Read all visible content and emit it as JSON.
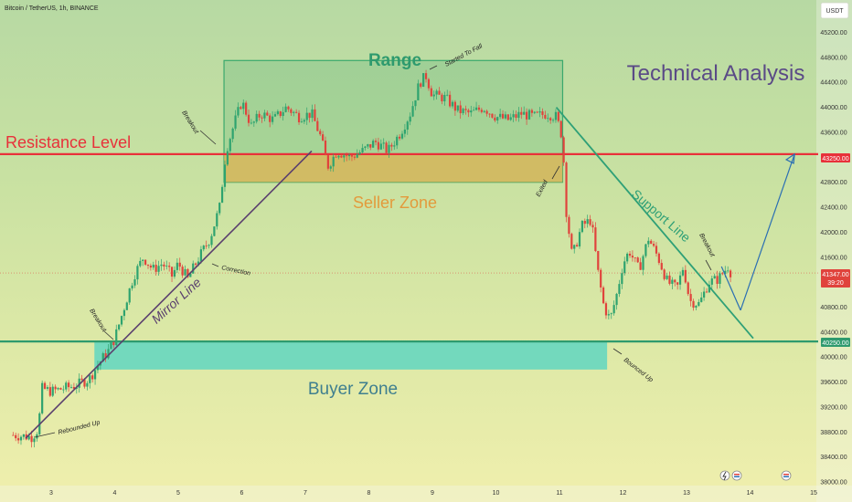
{
  "header": {
    "symbol_line": "Bitcoin / TetherUS, 1h, BINANCE",
    "currency": "USDT"
  },
  "title_overlay": "Technical Analysis",
  "zones": {
    "range_label": "Range",
    "seller_label": "Seller Zone",
    "buyer_label": "Buyer Zone",
    "resistance_label": "Resistance Level"
  },
  "lines": {
    "mirror_label": "Mirror Line",
    "support_label": "Support Line"
  },
  "notes": {
    "started_to_fall": "Started To Fall",
    "breakout_top": "Breakout",
    "breakout_left": "Breakout",
    "breakout_right": "Breakout",
    "correction": "Correction",
    "exited": "Exited",
    "rebounded_up": "Rebounded Up",
    "bounced_up": "Bounced Up"
  },
  "price_tags": {
    "resistance": "43250.00",
    "current": "41347.00",
    "countdown": "39:20",
    "support": "40250.00"
  },
  "colors": {
    "resistance": "#e8313a",
    "support": "#2e9a6e",
    "range_box": "#3aa86c",
    "seller_zone": "#e3b04f",
    "buyer_zone": "#4fd3c4",
    "mirror_line": "#5a3f6e",
    "support_line": "#2fa077",
    "projection": "#2b6fb3",
    "candle_up": "#2ea36f",
    "candle_down": "#e0433c",
    "title": "#5a4a86",
    "range_text": "#2e9a6e",
    "seller_text": "#e39a3c",
    "buyer_text": "#3f7f8f"
  },
  "chart_data": {
    "type": "candlestick",
    "title": "Bitcoin / TetherUS, 1h, BINANCE",
    "y_unit": "USDT",
    "ylim": [
      38000,
      45500
    ],
    "y_ticks": [
      45200,
      44800,
      44400,
      44000,
      43600,
      42800,
      42400,
      42000,
      41600,
      40800,
      40400,
      40000,
      39600,
      39200,
      38800,
      38400,
      38000
    ],
    "x_ticks": [
      "3",
      "4",
      "5",
      "6",
      "7",
      "8",
      "9",
      "10",
      "11",
      "12",
      "13",
      "14",
      "15"
    ],
    "close_path": [
      [
        2.4,
        38750
      ],
      [
        2.7,
        38720
      ],
      [
        2.8,
        38850
      ],
      [
        2.85,
        39500
      ],
      [
        3.0,
        39450
      ],
      [
        3.2,
        39500
      ],
      [
        3.4,
        39550
      ],
      [
        3.6,
        39650
      ],
      [
        3.75,
        39900
      ],
      [
        3.9,
        40100
      ],
      [
        4.0,
        40300
      ],
      [
        4.15,
        40800
      ],
      [
        4.3,
        41300
      ],
      [
        4.45,
        41600
      ],
      [
        4.6,
        41400
      ],
      [
        4.75,
        41500
      ],
      [
        4.9,
        41300
      ],
      [
        5.0,
        41500
      ],
      [
        5.15,
        41250
      ],
      [
        5.3,
        41550
      ],
      [
        5.5,
        41900
      ],
      [
        5.65,
        42400
      ],
      [
        5.75,
        43300
      ],
      [
        5.9,
        43800
      ],
      [
        6.0,
        44100
      ],
      [
        6.15,
        43700
      ],
      [
        6.3,
        43900
      ],
      [
        6.5,
        43800
      ],
      [
        6.7,
        44000
      ],
      [
        6.9,
        43850
      ],
      [
        7.1,
        43900
      ],
      [
        7.25,
        43500
      ],
      [
        7.35,
        43050
      ],
      [
        7.5,
        43300
      ],
      [
        7.7,
        43200
      ],
      [
        7.9,
        43300
      ],
      [
        8.1,
        43450
      ],
      [
        8.3,
        43300
      ],
      [
        8.5,
        43600
      ],
      [
        8.65,
        43900
      ],
      [
        8.8,
        44400
      ],
      [
        8.9,
        44500
      ],
      [
        9.0,
        44200
      ],
      [
        9.2,
        44150
      ],
      [
        9.4,
        43950
      ],
      [
        9.6,
        43900
      ],
      [
        9.8,
        44000
      ],
      [
        10.0,
        43850
      ],
      [
        10.2,
        43800
      ],
      [
        10.4,
        43900
      ],
      [
        10.6,
        43850
      ],
      [
        10.8,
        43900
      ],
      [
        10.95,
        43850
      ],
      [
        11.05,
        43500
      ],
      [
        11.1,
        42400
      ],
      [
        11.2,
        41600
      ],
      [
        11.35,
        42100
      ],
      [
        11.5,
        42200
      ],
      [
        11.6,
        41400
      ],
      [
        11.7,
        40800
      ],
      [
        11.8,
        40600
      ],
      [
        11.9,
        41000
      ],
      [
        12.0,
        41500
      ],
      [
        12.1,
        41700
      ],
      [
        12.25,
        41400
      ],
      [
        12.4,
        41900
      ],
      [
        12.55,
        41600
      ],
      [
        12.7,
        41200
      ],
      [
        12.85,
        41100
      ],
      [
        12.95,
        41450
      ],
      [
        13.05,
        40900
      ],
      [
        13.2,
        40850
      ],
      [
        13.35,
        41200
      ],
      [
        13.5,
        41250
      ],
      [
        13.65,
        41450
      ],
      [
        13.7,
        41347
      ]
    ],
    "levels": [
      {
        "name": "Resistance Level",
        "y": 43250
      },
      {
        "name": "Support",
        "y": 40250
      },
      {
        "name": "Current",
        "y": 41347
      }
    ],
    "zones": [
      {
        "name": "Range",
        "x": [
          5.72,
          11.05
        ],
        "y": [
          42800,
          44750
        ]
      },
      {
        "name": "Seller Zone",
        "x": [
          5.72,
          11.05
        ],
        "y": [
          42800,
          43250
        ]
      },
      {
        "name": "Buyer Zone",
        "x": [
          3.68,
          11.75
        ],
        "y": [
          39800,
          40250
        ]
      }
    ],
    "trendlines": [
      {
        "name": "Mirror Line",
        "from": [
          2.6,
          38700
        ],
        "to": [
          7.1,
          43300
        ]
      },
      {
        "name": "Support Line",
        "from": [
          10.95,
          44000
        ],
        "to": [
          14.05,
          40300
        ]
      },
      {
        "name": "Projection",
        "from": [
          13.85,
          40750
        ],
        "to": [
          14.7,
          43250
        ]
      }
    ]
  }
}
